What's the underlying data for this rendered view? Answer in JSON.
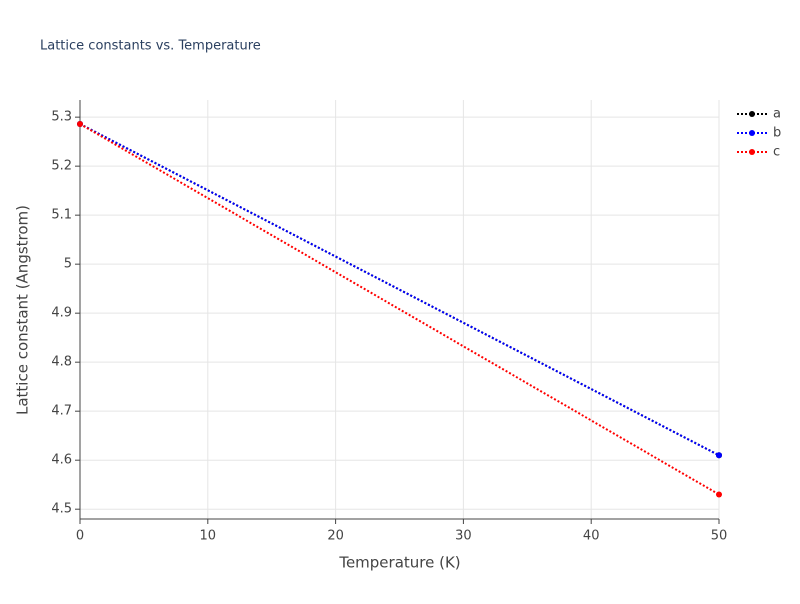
{
  "chart_data": {
    "type": "line",
    "title": "Lattice constants vs. Temperature",
    "x_label": "Temperature (K)",
    "y_label": "Lattice constant (Angstrom)",
    "x": [
      0,
      50
    ],
    "series": [
      {
        "name": "a",
        "color": "#000000",
        "values": [
          5.286,
          4.61
        ]
      },
      {
        "name": "b",
        "color": "#0000ff",
        "values": [
          5.286,
          4.61
        ]
      },
      {
        "name": "c",
        "color": "#ff0000",
        "values": [
          5.286,
          4.53
        ]
      }
    ],
    "xlim": [
      0,
      50
    ],
    "xticks": [
      0,
      10,
      20,
      30,
      40,
      50
    ],
    "ylim": [
      4.48,
      5.335
    ],
    "yticks": [
      4.5,
      4.6,
      4.7,
      4.8,
      4.9,
      5,
      5.1,
      5.2,
      5.3
    ],
    "grid": true,
    "legend": "top-right",
    "line_style": "dotted"
  }
}
